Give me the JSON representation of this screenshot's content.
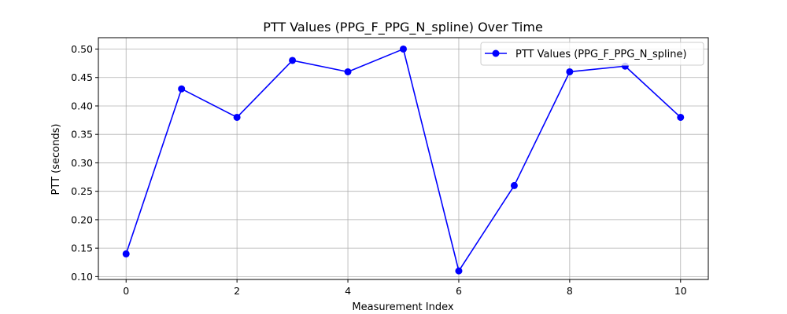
{
  "chart_data": {
    "type": "line",
    "title": "PTT Values (PPG_F_PPG_N_spline) Over Time",
    "xlabel": "Measurement Index",
    "ylabel": "PTT (seconds)",
    "x": [
      0,
      1,
      2,
      3,
      4,
      5,
      6,
      7,
      8,
      9,
      10
    ],
    "series": [
      {
        "name": "PTT Values (PPG_F_PPG_N_spline)",
        "values": [
          0.14,
          0.43,
          0.38,
          0.48,
          0.46,
          0.5,
          0.11,
          0.26,
          0.46,
          0.47,
          0.38
        ],
        "color": "#0000ff",
        "marker": "circle"
      }
    ],
    "xlim": [
      -0.5,
      10.5
    ],
    "ylim": [
      0.095,
      0.52
    ],
    "xticks": [
      0,
      2,
      4,
      6,
      8,
      10
    ],
    "xtick_labels": [
      "0",
      "2",
      "4",
      "6",
      "8",
      "10"
    ],
    "yticks": [
      0.1,
      0.15,
      0.2,
      0.25,
      0.3,
      0.35,
      0.4,
      0.45,
      0.5
    ],
    "ytick_labels": [
      "0.10",
      "0.15",
      "0.20",
      "0.25",
      "0.30",
      "0.35",
      "0.40",
      "0.45",
      "0.50"
    ],
    "grid": true,
    "legend_position": "top-right"
  }
}
